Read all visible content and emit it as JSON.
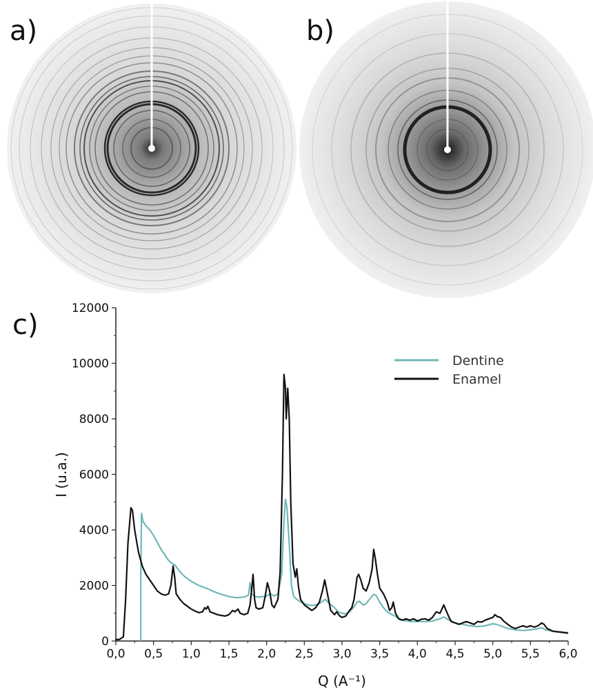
{
  "panels": {
    "a_label": "a)",
    "b_label": "b)",
    "c_label": "c)",
    "ring_color": "#1a1a1a"
  },
  "chart_data": {
    "type": "line",
    "title": "",
    "xlabel": "Q (A⁻¹)",
    "ylabel": "I (u.a.)",
    "xlim": [
      0,
      6
    ],
    "ylim": [
      0,
      12000
    ],
    "x_ticks": [
      "0,0",
      "0,5",
      "1,0",
      "1,5",
      "2,0",
      "2,5",
      "3,0",
      "3,5",
      "4,0",
      "4,5",
      "5,0",
      "5,5",
      "6,0"
    ],
    "y_ticks": [
      "0",
      "2000",
      "4000",
      "6000",
      "8000",
      "10000",
      "12000"
    ],
    "legend": {
      "position": "top-right"
    },
    "series": [
      {
        "name": "Dentine",
        "color": "#6fb8b8",
        "points": [
          [
            0.33,
            0
          ],
          [
            0.33,
            2000
          ],
          [
            0.34,
            4600
          ],
          [
            0.36,
            4300
          ],
          [
            0.4,
            4150
          ],
          [
            0.45,
            4000
          ],
          [
            0.5,
            3800
          ],
          [
            0.55,
            3550
          ],
          [
            0.6,
            3300
          ],
          [
            0.65,
            3100
          ],
          [
            0.7,
            2900
          ],
          [
            0.75,
            2780
          ],
          [
            0.78,
            2750
          ],
          [
            0.85,
            2500
          ],
          [
            0.9,
            2350
          ],
          [
            1.0,
            2150
          ],
          [
            1.1,
            2000
          ],
          [
            1.2,
            1900
          ],
          [
            1.3,
            1780
          ],
          [
            1.4,
            1680
          ],
          [
            1.5,
            1600
          ],
          [
            1.6,
            1560
          ],
          [
            1.7,
            1580
          ],
          [
            1.76,
            1650
          ],
          [
            1.78,
            2100
          ],
          [
            1.8,
            1700
          ],
          [
            1.85,
            1600
          ],
          [
            1.9,
            1580
          ],
          [
            1.95,
            1600
          ],
          [
            2.0,
            1620
          ],
          [
            2.05,
            1700
          ],
          [
            2.1,
            1620
          ],
          [
            2.15,
            1700
          ],
          [
            2.2,
            2400
          ],
          [
            2.23,
            4300
          ],
          [
            2.25,
            5100
          ],
          [
            2.27,
            4800
          ],
          [
            2.3,
            3500
          ],
          [
            2.33,
            2000
          ],
          [
            2.36,
            1600
          ],
          [
            2.4,
            1500
          ],
          [
            2.45,
            1400
          ],
          [
            2.5,
            1350
          ],
          [
            2.55,
            1300
          ],
          [
            2.6,
            1280
          ],
          [
            2.65,
            1300
          ],
          [
            2.7,
            1350
          ],
          [
            2.75,
            1450
          ],
          [
            2.78,
            1500
          ],
          [
            2.82,
            1380
          ],
          [
            2.9,
            1200
          ],
          [
            2.95,
            1050
          ],
          [
            3.0,
            1000
          ],
          [
            3.05,
            980
          ],
          [
            3.1,
            1050
          ],
          [
            3.15,
            1200
          ],
          [
            3.2,
            1400
          ],
          [
            3.23,
            1430
          ],
          [
            3.28,
            1300
          ],
          [
            3.32,
            1350
          ],
          [
            3.38,
            1550
          ],
          [
            3.42,
            1680
          ],
          [
            3.45,
            1650
          ],
          [
            3.5,
            1400
          ],
          [
            3.55,
            1200
          ],
          [
            3.6,
            1050
          ],
          [
            3.7,
            900
          ],
          [
            3.8,
            750
          ],
          [
            3.9,
            700
          ],
          [
            4.0,
            700
          ],
          [
            4.1,
            700
          ],
          [
            4.2,
            720
          ],
          [
            4.3,
            800
          ],
          [
            4.35,
            870
          ],
          [
            4.4,
            780
          ],
          [
            4.5,
            650
          ],
          [
            4.6,
            600
          ],
          [
            4.7,
            550
          ],
          [
            4.8,
            520
          ],
          [
            4.9,
            550
          ],
          [
            5.0,
            620
          ],
          [
            5.05,
            600
          ],
          [
            5.1,
            550
          ],
          [
            5.2,
            450
          ],
          [
            5.3,
            400
          ],
          [
            5.4,
            380
          ],
          [
            5.5,
            400
          ],
          [
            5.6,
            450
          ],
          [
            5.65,
            480
          ],
          [
            5.7,
            400
          ],
          [
            5.8,
            350
          ],
          [
            5.9,
            320
          ],
          [
            6.0,
            300
          ]
        ]
      },
      {
        "name": "Enamel",
        "color": "#111111",
        "points": [
          [
            0.0,
            50
          ],
          [
            0.05,
            60
          ],
          [
            0.1,
            150
          ],
          [
            0.13,
            1500
          ],
          [
            0.16,
            3500
          ],
          [
            0.2,
            4800
          ],
          [
            0.22,
            4700
          ],
          [
            0.25,
            4000
          ],
          [
            0.3,
            3200
          ],
          [
            0.35,
            2700
          ],
          [
            0.4,
            2400
          ],
          [
            0.45,
            2200
          ],
          [
            0.5,
            2000
          ],
          [
            0.55,
            1800
          ],
          [
            0.6,
            1700
          ],
          [
            0.65,
            1650
          ],
          [
            0.7,
            1700
          ],
          [
            0.73,
            2000
          ],
          [
            0.76,
            2700
          ],
          [
            0.78,
            2300
          ],
          [
            0.8,
            1700
          ],
          [
            0.85,
            1500
          ],
          [
            0.9,
            1350
          ],
          [
            0.95,
            1250
          ],
          [
            1.0,
            1150
          ],
          [
            1.05,
            1080
          ],
          [
            1.1,
            1020
          ],
          [
            1.15,
            1050
          ],
          [
            1.18,
            1200
          ],
          [
            1.2,
            1150
          ],
          [
            1.22,
            1250
          ],
          [
            1.25,
            1050
          ],
          [
            1.3,
            1000
          ],
          [
            1.35,
            950
          ],
          [
            1.4,
            920
          ],
          [
            1.45,
            900
          ],
          [
            1.5,
            950
          ],
          [
            1.55,
            1100
          ],
          [
            1.58,
            1050
          ],
          [
            1.62,
            1150
          ],
          [
            1.65,
            1000
          ],
          [
            1.7,
            950
          ],
          [
            1.75,
            1000
          ],
          [
            1.78,
            1300
          ],
          [
            1.8,
            1800
          ],
          [
            1.82,
            2400
          ],
          [
            1.84,
            1500
          ],
          [
            1.86,
            1200
          ],
          [
            1.9,
            1150
          ],
          [
            1.95,
            1200
          ],
          [
            1.98,
            1600
          ],
          [
            2.01,
            2100
          ],
          [
            2.04,
            1800
          ],
          [
            2.07,
            1300
          ],
          [
            2.1,
            1200
          ],
          [
            2.15,
            1500
          ],
          [
            2.18,
            2500
          ],
          [
            2.21,
            6000
          ],
          [
            2.23,
            9600
          ],
          [
            2.25,
            9100
          ],
          [
            2.26,
            8000
          ],
          [
            2.28,
            9100
          ],
          [
            2.3,
            8000
          ],
          [
            2.32,
            5000
          ],
          [
            2.35,
            2800
          ],
          [
            2.38,
            2300
          ],
          [
            2.4,
            2600
          ],
          [
            2.42,
            2000
          ],
          [
            2.45,
            1500
          ],
          [
            2.5,
            1300
          ],
          [
            2.55,
            1200
          ],
          [
            2.6,
            1100
          ],
          [
            2.65,
            1200
          ],
          [
            2.7,
            1400
          ],
          [
            2.74,
            1800
          ],
          [
            2.77,
            2200
          ],
          [
            2.8,
            1800
          ],
          [
            2.85,
            1100
          ],
          [
            2.9,
            950
          ],
          [
            2.93,
            1050
          ],
          [
            2.97,
            900
          ],
          [
            3.0,
            850
          ],
          [
            3.05,
            900
          ],
          [
            3.1,
            1100
          ],
          [
            3.13,
            1200
          ],
          [
            3.16,
            1500
          ],
          [
            3.2,
            2300
          ],
          [
            3.22,
            2400
          ],
          [
            3.25,
            2200
          ],
          [
            3.28,
            1900
          ],
          [
            3.32,
            1800
          ],
          [
            3.36,
            2100
          ],
          [
            3.4,
            2600
          ],
          [
            3.42,
            3300
          ],
          [
            3.44,
            3000
          ],
          [
            3.47,
            2400
          ],
          [
            3.5,
            1900
          ],
          [
            3.55,
            1700
          ],
          [
            3.6,
            1400
          ],
          [
            3.63,
            1100
          ],
          [
            3.66,
            1200
          ],
          [
            3.68,
            1400
          ],
          [
            3.71,
            1000
          ],
          [
            3.75,
            800
          ],
          [
            3.8,
            750
          ],
          [
            3.85,
            800
          ],
          [
            3.9,
            750
          ],
          [
            3.95,
            800
          ],
          [
            4.0,
            720
          ],
          [
            4.05,
            780
          ],
          [
            4.1,
            800
          ],
          [
            4.15,
            750
          ],
          [
            4.2,
            850
          ],
          [
            4.25,
            1050
          ],
          [
            4.3,
            1000
          ],
          [
            4.35,
            1300
          ],
          [
            4.38,
            1100
          ],
          [
            4.42,
            850
          ],
          [
            4.45,
            700
          ],
          [
            4.5,
            650
          ],
          [
            4.55,
            600
          ],
          [
            4.6,
            650
          ],
          [
            4.65,
            700
          ],
          [
            4.7,
            650
          ],
          [
            4.75,
            600
          ],
          [
            4.8,
            700
          ],
          [
            4.85,
            680
          ],
          [
            4.9,
            750
          ],
          [
            4.95,
            800
          ],
          [
            5.0,
            850
          ],
          [
            5.03,
            950
          ],
          [
            5.06,
            880
          ],
          [
            5.1,
            850
          ],
          [
            5.15,
            700
          ],
          [
            5.2,
            600
          ],
          [
            5.25,
            500
          ],
          [
            5.3,
            450
          ],
          [
            5.35,
            500
          ],
          [
            5.4,
            550
          ],
          [
            5.45,
            500
          ],
          [
            5.5,
            550
          ],
          [
            5.55,
            500
          ],
          [
            5.6,
            550
          ],
          [
            5.65,
            650
          ],
          [
            5.68,
            600
          ],
          [
            5.72,
            450
          ],
          [
            5.8,
            350
          ],
          [
            5.9,
            320
          ],
          [
            5.95,
            300
          ],
          [
            6.0,
            280
          ]
        ]
      }
    ]
  }
}
